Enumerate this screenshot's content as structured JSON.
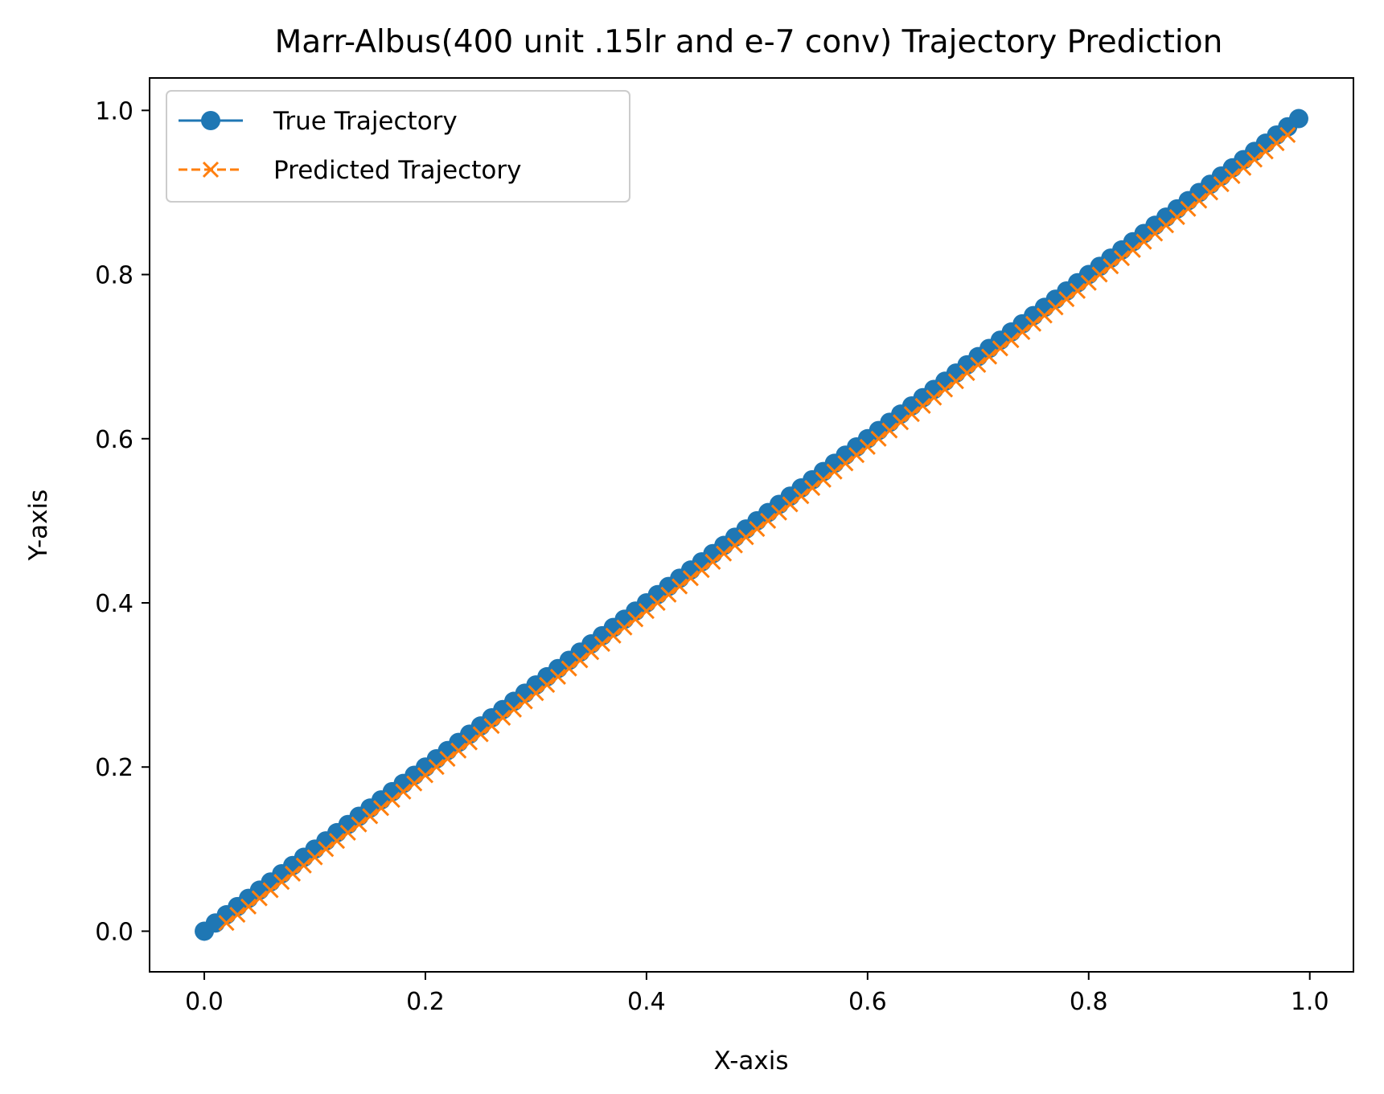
{
  "chart_data": {
    "type": "line",
    "title": "Marr-Albus(400 unit .15lr and e-7 conv) Trajectory Prediction",
    "xlabel": "X-axis",
    "ylabel": "Y-axis",
    "xlim": [
      -0.0495,
      1.0395
    ],
    "ylim": [
      -0.0495,
      1.0395
    ],
    "xticks": [
      0.0,
      0.2,
      0.4,
      0.6,
      0.8,
      1.0
    ],
    "yticks": [
      0.0,
      0.2,
      0.4,
      0.6,
      0.8,
      1.0
    ],
    "xtick_labels": [
      "0.0",
      "0.2",
      "0.4",
      "0.6",
      "0.8",
      "1.0"
    ],
    "ytick_labels": [
      "0.0",
      "0.2",
      "0.4",
      "0.6",
      "0.8",
      "1.0"
    ],
    "grid": false,
    "legend_position": "top-left",
    "series": [
      {
        "name": "True Trajectory",
        "color": "#1f77b4",
        "line_style": "solid",
        "marker": "circle",
        "x_start": 0.0,
        "x_end": 0.99,
        "step": 0.01,
        "relation": "y = x"
      },
      {
        "name": "Predicted Trajectory",
        "color": "#ff7f0e",
        "line_style": "dashed",
        "marker": "x",
        "x_start": 0.02,
        "x_end": 0.98,
        "step": 0.01,
        "relation": "y = x - 0.01"
      }
    ]
  }
}
